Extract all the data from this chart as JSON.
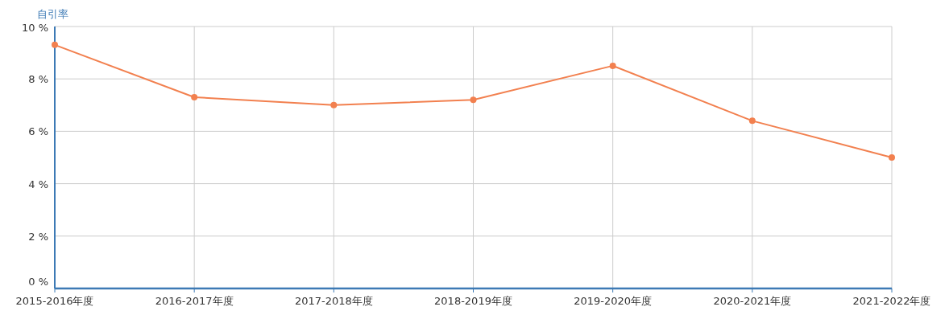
{
  "chart_data": {
    "type": "line",
    "ylabel": "自引率",
    "categories": [
      "2015-2016年度",
      "2016-2017年度",
      "2017-2018年度",
      "2018-2019年度",
      "2019-2020年度",
      "2020-2021年度",
      "2021-2022年度"
    ],
    "series": [
      {
        "color": "#f2804f",
        "values": [
          9.3,
          7.3,
          7.0,
          7.2,
          8.5,
          6.4,
          5.0
        ]
      }
    ],
    "ylim": [
      0,
      10
    ],
    "yticks": [
      {
        "value": 0,
        "label": "0 %"
      },
      {
        "value": 2,
        "label": "2 %"
      },
      {
        "value": 4,
        "label": "4 %"
      },
      {
        "value": 6,
        "label": "6 %"
      },
      {
        "value": 8,
        "label": "8 %"
      },
      {
        "value": 10,
        "label": "10 %"
      }
    ],
    "grid": true,
    "marker": "circle",
    "line_style": "solid"
  }
}
